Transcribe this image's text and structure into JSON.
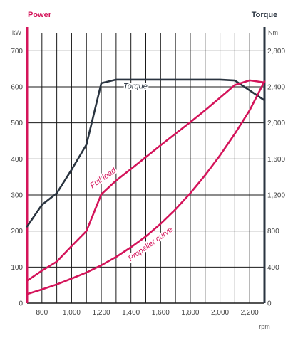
{
  "chart_data": {
    "type": "line",
    "title": "",
    "left_axis": {
      "title": "Power",
      "unit": "kW",
      "range": [
        0,
        750
      ],
      "ticks": [
        0,
        100,
        200,
        300,
        400,
        500,
        600,
        700
      ],
      "tick_labels": [
        "0",
        "100",
        "200",
        "300",
        "400",
        "500",
        "600",
        "700"
      ],
      "color": "#d4145a"
    },
    "right_axis": {
      "title": "Torque",
      "unit": "Nm",
      "range": [
        0,
        3000
      ],
      "ticks": [
        0,
        400,
        800,
        1200,
        1600,
        2000,
        2400,
        2800
      ],
      "tick_labels": [
        "0",
        "400",
        "800",
        "1,200",
        "1,600",
        "2,000",
        "2,400",
        "2,800"
      ],
      "color": "#2a3440"
    },
    "x_axis": {
      "unit": "rpm",
      "range": [
        700,
        2300
      ],
      "ticks": [
        800,
        1000,
        1200,
        1400,
        1600,
        1800,
        2000,
        2200
      ],
      "tick_labels": [
        "800",
        "1,000",
        "1,200",
        "1,400",
        "1,600",
        "1,800",
        "2,000",
        "2,200"
      ],
      "grid_step": 100
    },
    "grid": true,
    "series": [
      {
        "name": "Torque",
        "axis": "right",
        "color": "#2a3440",
        "label_at": [
          1430,
          2410
        ],
        "label_angle": 0,
        "points": [
          [
            700,
            850
          ],
          [
            800,
            1090
          ],
          [
            900,
            1220
          ],
          [
            1000,
            1480
          ],
          [
            1100,
            1760
          ],
          [
            1200,
            2440
          ],
          [
            1300,
            2480
          ],
          [
            1400,
            2480
          ],
          [
            1600,
            2480
          ],
          [
            1800,
            2480
          ],
          [
            2000,
            2480
          ],
          [
            2100,
            2470
          ],
          [
            2300,
            2250
          ]
        ]
      },
      {
        "name": "Full load",
        "axis": "left",
        "color": "#d4145a",
        "label_at": [
          1210,
          348
        ],
        "label_angle": -35,
        "points": [
          [
            700,
            62
          ],
          [
            800,
            90
          ],
          [
            900,
            115
          ],
          [
            1000,
            158
          ],
          [
            1100,
            200
          ],
          [
            1200,
            302
          ],
          [
            1300,
            340
          ],
          [
            1400,
            372
          ],
          [
            1500,
            405
          ],
          [
            1600,
            438
          ],
          [
            1700,
            470
          ],
          [
            1800,
            502
          ],
          [
            1900,
            535
          ],
          [
            2000,
            570
          ],
          [
            2100,
            605
          ],
          [
            2200,
            618
          ],
          [
            2300,
            612
          ]
        ]
      },
      {
        "name": "Propeller curve",
        "axis": "left",
        "color": "#d4145a",
        "label_at": [
          1530,
          165
        ],
        "label_angle": -36,
        "points": [
          [
            700,
            25
          ],
          [
            800,
            38
          ],
          [
            900,
            52
          ],
          [
            1000,
            68
          ],
          [
            1100,
            85
          ],
          [
            1200,
            105
          ],
          [
            1300,
            128
          ],
          [
            1400,
            155
          ],
          [
            1500,
            185
          ],
          [
            1600,
            220
          ],
          [
            1700,
            260
          ],
          [
            1800,
            305
          ],
          [
            1900,
            355
          ],
          [
            2000,
            410
          ],
          [
            2100,
            470
          ],
          [
            2200,
            535
          ],
          [
            2300,
            615
          ]
        ]
      }
    ]
  }
}
